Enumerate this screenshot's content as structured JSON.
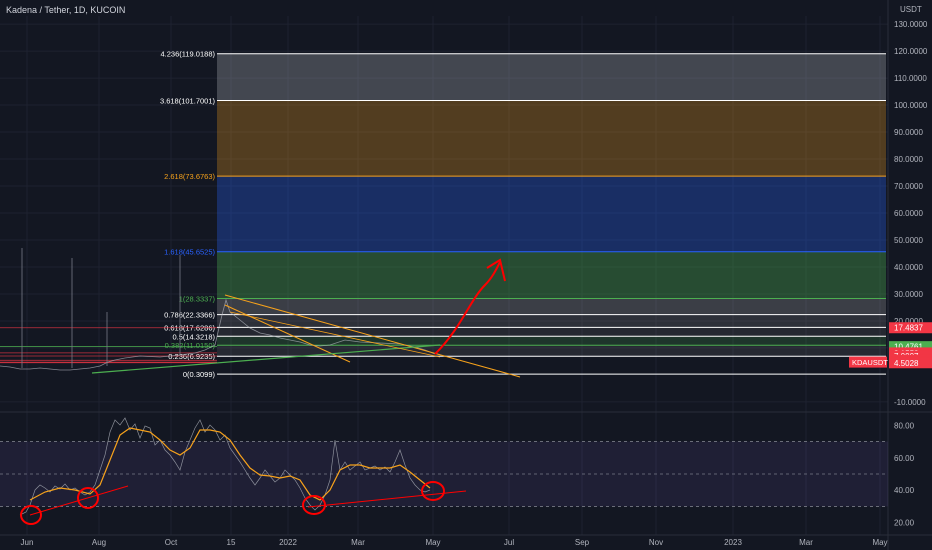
{
  "header": {
    "title": "Kadena / Tether, 1D, KUCOIN",
    "unit": "USDT"
  },
  "chart_data": {
    "type": "line",
    "price_axis": {
      "ticks": [
        "130.0000",
        "120.0000",
        "110.0000",
        "100.0000",
        "90.0000",
        "80.0000",
        "70.0000",
        "60.0000",
        "50.0000",
        "40.0000",
        "30.0000",
        "20.0000",
        "10.0000",
        "-10.0000"
      ],
      "range": [
        -13,
        133
      ]
    },
    "rsi_axis": {
      "ticks": [
        "80.00",
        "60.00",
        "40.00",
        "20.00"
      ],
      "range": [
        13,
        87
      ],
      "levels": [
        70,
        50,
        30
      ]
    },
    "time_axis": {
      "labels": [
        "Jun",
        "Aug",
        "Oct",
        "15",
        "2022",
        "Mar",
        "May",
        "Jul",
        "Sep",
        "Nov",
        "2023",
        "Mar",
        "May"
      ]
    },
    "fib_levels": [
      {
        "ratio": 4.236,
        "label": "4.236(119.0188)",
        "price": 119.0188,
        "color": "#ffffff",
        "fill": "rgba(255,255,255,0.22)"
      },
      {
        "ratio": 3.618,
        "label": "3.618(101.7001)",
        "price": 101.7001,
        "color": "#ffffff",
        "fill": "rgba(178,181,190,0.30)"
      },
      {
        "ratio": 2.618,
        "label": "2.618(73.6763)",
        "price": 73.6763,
        "color": "#f7a21b",
        "fill": "rgba(247,162,27,0.28)"
      },
      {
        "ratio": 1.618,
        "label": "1.618(45.6525)",
        "price": 45.6525,
        "color": "#2962ff",
        "fill": "rgba(41,98,255,0.30)"
      },
      {
        "ratio": 1,
        "label": "1(28.3337)",
        "price": 28.3337,
        "color": "#4caf50",
        "fill": "rgba(76,175,80,0.35)"
      },
      {
        "ratio": 0.786,
        "label": "0.786(22.3366)",
        "price": 22.3366,
        "color": "#ffffff",
        "fill": "rgba(180,180,180,0.25)"
      },
      {
        "ratio": 0.618,
        "label": "0.618(17.6286)",
        "price": 17.6286,
        "color": "#ffffff",
        "fill": "rgba(150,150,150,0.20)"
      },
      {
        "ratio": 0.5,
        "label": "0.5(14.3218)",
        "price": 14.3218,
        "color": "#ffffff",
        "fill": "rgba(120,120,120,0.18)"
      },
      {
        "ratio": 0.382,
        "label": "0.382(11.0150)",
        "price": 11.015,
        "color": "#4caf50",
        "fill": "rgba(76,175,80,0.20)"
      },
      {
        "ratio": 0.236,
        "label": "0.236(6.9235)",
        "price": 6.9235,
        "color": "#ffffff",
        "fill": "rgba(150,150,150,0.15)"
      },
      {
        "ratio": 0,
        "label": "0(0.3099)",
        "price": 0.3099,
        "color": "#ffffff",
        "fill": "rgba(0,0,0,0)"
      }
    ],
    "price_badges": [
      {
        "label": "17.4837",
        "price": 17.4837,
        "color": "#f23645"
      },
      {
        "label": "10.4761",
        "price": 10.4761,
        "color": "#4caf50"
      },
      {
        "label": "8.1553",
        "price": 8.1553,
        "color": "#f23645"
      },
      {
        "label": "7.0007",
        "price": 7.0007,
        "color": "#f23645"
      },
      {
        "label": "5.4061",
        "price": 5.4061,
        "color": "#f23645"
      },
      {
        "label": "4.7506",
        "price": 4.7506,
        "color": "#f23645"
      },
      {
        "label": "4.5028",
        "price": 4.5028,
        "color": "#f23645"
      }
    ],
    "symbol_badge": {
      "label": "KDAUSDT",
      "color": "#f23645"
    },
    "colors": {
      "background": "#131722",
      "grid": "#1e2230",
      "axis_text": "#b2b5be",
      "price_line": "#b2b5be",
      "rsi": "#b2b5be",
      "rsi_ma": "#f7a21b",
      "annotation": "#ff0000",
      "trend_orange": "#f7a21b",
      "trend_green": "#4caf50"
    }
  }
}
